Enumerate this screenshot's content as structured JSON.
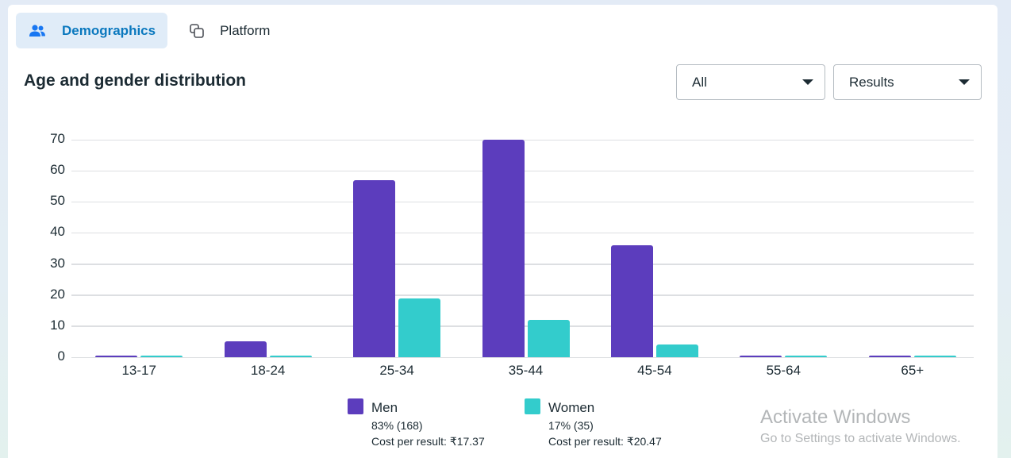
{
  "tabs": [
    {
      "label": "Demographics",
      "icon": "people-icon",
      "active": true
    },
    {
      "label": "Platform",
      "icon": "copy-squares-icon",
      "active": false
    }
  ],
  "section": {
    "title": "Age and gender distribution"
  },
  "filters": {
    "audience": {
      "value": "All"
    },
    "metric": {
      "value": "Results"
    }
  },
  "colors": {
    "men": "#5c3dbd",
    "women": "#33cccc",
    "grid": "#dddfe2",
    "accent": "#0a78be"
  },
  "chart_data": {
    "type": "bar",
    "title": "Age and gender distribution",
    "xlabel": "",
    "ylabel": "Results",
    "categories": [
      "13-17",
      "18-24",
      "25-34",
      "35-44",
      "45-54",
      "55-64",
      "65+"
    ],
    "series": [
      {
        "name": "Men",
        "color": "#5c3dbd",
        "values": [
          0,
          5,
          57,
          70,
          36,
          0,
          0
        ]
      },
      {
        "name": "Women",
        "color": "#33cccc",
        "values": [
          0,
          0,
          19,
          12,
          4,
          0,
          0
        ]
      }
    ],
    "yticks": [
      0,
      10,
      20,
      30,
      40,
      50,
      60,
      70
    ],
    "ylim": [
      0,
      70
    ],
    "grid": true,
    "legend_position": "bottom"
  },
  "legend": [
    {
      "name": "Men",
      "pct": "83% (168)",
      "cost": "Cost per result: ₹17.37"
    },
    {
      "name": "Women",
      "pct": "17% (35)",
      "cost": "Cost per result: ₹20.47"
    }
  ],
  "watermark": {
    "line1": "Activate Windows",
    "line2": "Go to Settings to activate Windows."
  }
}
